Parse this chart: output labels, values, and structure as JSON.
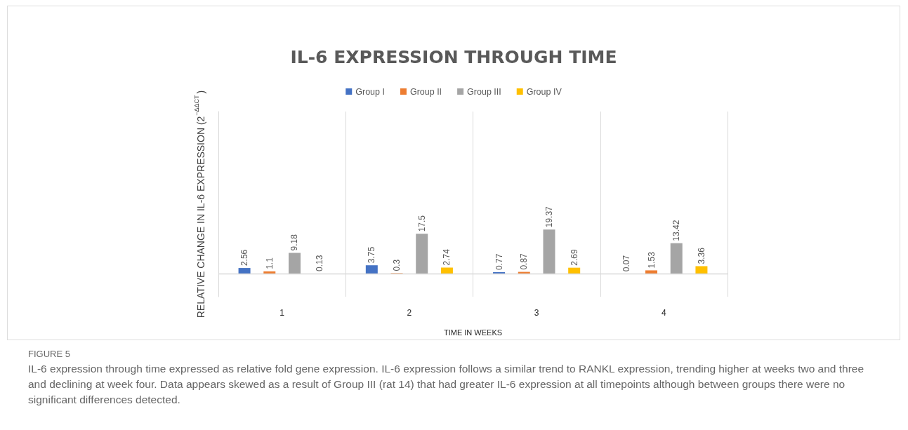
{
  "chart_data": {
    "type": "bar",
    "title": "IL-6 EXPRESSION THROUGH TIME",
    "xlabel": "TIME IN WEEKS",
    "ylabel": "RELATIVE CHANGE IN IL-6 EXPRESSION (2$^{−ΔΔCT}$)",
    "categories": [
      "1",
      "2",
      "3",
      "4"
    ],
    "series": [
      {
        "name": "Group I",
        "color": "#4472c4",
        "values": [
          2.56,
          3.75,
          0.77,
          0.07
        ]
      },
      {
        "name": "Group II",
        "color": "#ed7d31",
        "values": [
          1.1,
          0.3,
          0.87,
          1.53
        ]
      },
      {
        "name": "Group III",
        "color": "#a5a5a5",
        "values": [
          9.18,
          17.5,
          19.37,
          13.42
        ]
      },
      {
        "name": "Group IV",
        "color": "#ffc000",
        "values": [
          0.13,
          2.74,
          2.69,
          3.36
        ]
      }
    ],
    "ylim": [
      -10,
      71
    ],
    "data_labels": true,
    "grid": "x",
    "legend": "top",
    "tick_labels": "x",
    "annotations": [
      "FIGURE 5",
      "IL-6 expression through time expressed as relative fold gene expression. IL-6 expression follows a similar trend to RANKL expression, trending higher at weeks two and three and declining at week four. Data appears skewed as a result of Group III (rat 14) that had greater IL-6 expression at all timepoints although between groups there were no significant differences detected."
    ]
  }
}
